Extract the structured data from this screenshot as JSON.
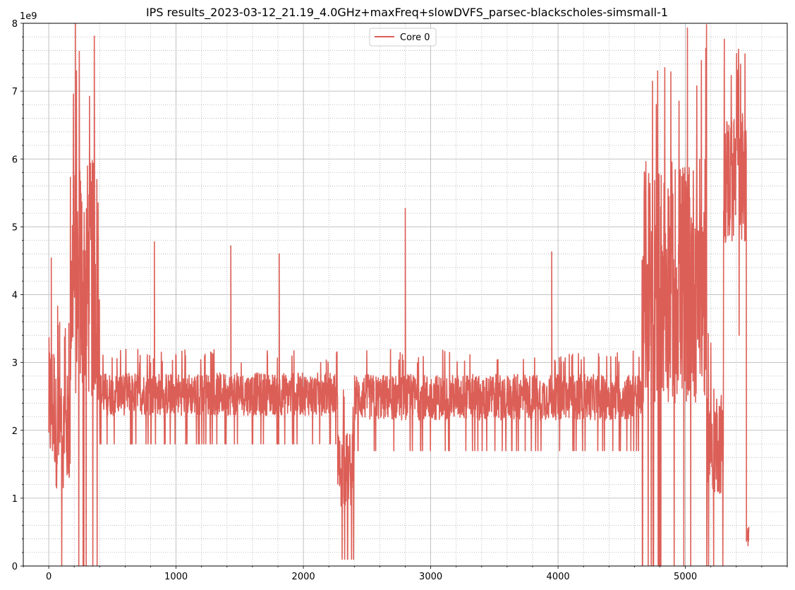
{
  "chart_data": {
    "type": "line",
    "title": "IPS results_2023-03-12_21.19_4.0GHz+maxFreq+slowDVFS_parsec-blackscholes-simsmall-1",
    "xlabel": "",
    "ylabel": "",
    "y_offset_label": "1e9",
    "xlim": [
      -200,
      5800
    ],
    "ylim": [
      0,
      8
    ],
    "x_ticks": [
      0,
      1000,
      2000,
      3000,
      4000,
      5000
    ],
    "y_ticks": [
      0,
      1,
      2,
      3,
      4,
      5,
      6,
      7,
      8
    ],
    "grid": true,
    "minor_grid": true,
    "legend_position": "top-center",
    "series": [
      {
        "name": "Core 0",
        "color": "#dc5f57",
        "x_range": [
          0,
          5500
        ],
        "segments": [
          {
            "x": [
              0,
              50
            ],
            "low": 0.0,
            "high": 4.5
          },
          {
            "x": [
              50,
              170
            ],
            "low": 0.0,
            "high": 3.8
          },
          {
            "x": [
              170,
              400
            ],
            "low": 0.0,
            "high": 8.0
          },
          {
            "x": [
              400,
              2270
            ],
            "low": 1.8,
            "high": 3.2
          },
          {
            "x": [
              2270,
              2400
            ],
            "low": 0.1,
            "high": 2.6
          },
          {
            "x": [
              2400,
              4660
            ],
            "low": 1.7,
            "high": 3.2
          },
          {
            "x": [
              4660,
              5170
            ],
            "low": 0.0,
            "high": 8.0
          },
          {
            "x": [
              5170,
              5300
            ],
            "low": 0.0,
            "high": 3.5
          },
          {
            "x": [
              5300,
              5480
            ],
            "low": 3.4,
            "high": 7.8
          },
          {
            "x": [
              5480,
              5500
            ],
            "low": 0.0,
            "high": 0.8
          }
        ],
        "peaks": [
          {
            "x": 20,
            "y": 4.54
          },
          {
            "x": 70,
            "y": 3.83
          },
          {
            "x": 130,
            "y": 3.5
          },
          {
            "x": 210,
            "y": 8.0
          },
          {
            "x": 250,
            "y": 5.2
          },
          {
            "x": 830,
            "y": 4.78
          },
          {
            "x": 1430,
            "y": 4.72
          },
          {
            "x": 1810,
            "y": 4.6
          },
          {
            "x": 2800,
            "y": 5.27
          },
          {
            "x": 3950,
            "y": 4.63
          }
        ]
      }
    ]
  }
}
